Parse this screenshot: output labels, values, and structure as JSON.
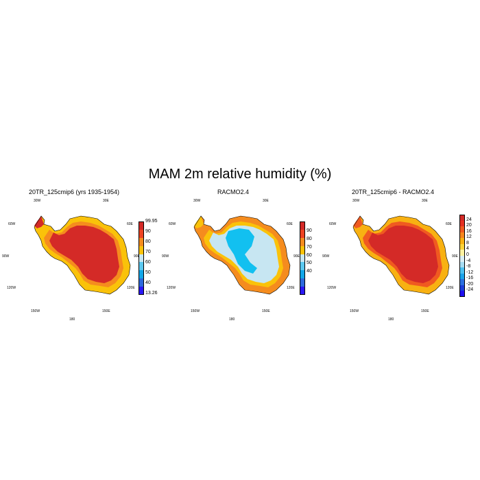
{
  "title": "MAM 2m relative humidity (%)",
  "panels": [
    {
      "title": "20TR_125cmip6 (yrs 1935-1954)",
      "lon_labels": [
        "30W",
        "30E",
        "60W",
        "60E",
        "90W",
        "90E",
        "120W",
        "120E",
        "150W",
        "150E",
        "180"
      ],
      "colorbar": {
        "colors": [
          "#2a19f5",
          "#2c69dc",
          "#12a6e8",
          "#5bc8f0",
          "#c7e6f2",
          "#fac20a",
          "#f58c1e",
          "#ed4322",
          "#d42a27"
        ],
        "labels": [
          "99.95",
          "90",
          "80",
          "70",
          "60",
          "50",
          "40",
          "13.26"
        ]
      }
    },
    {
      "title": "RACMO2.4",
      "lon_labels": [
        "30W",
        "30E",
        "60W",
        "60E",
        "90W",
        "90E",
        "120W",
        "120E",
        "150W",
        "150E",
        "180"
      ],
      "colorbar": {
        "colors": [
          "#2a19f5",
          "#2c69dc",
          "#12a6e8",
          "#5bc8f0",
          "#c7e6f2",
          "#fac20a",
          "#f58c1e",
          "#ed4322",
          "#d42a27"
        ],
        "labels": [
          "90",
          "80",
          "70",
          "60",
          "50",
          "40"
        ]
      }
    },
    {
      "title": "20TR_125cmip6 - RACMO2.4",
      "lon_labels": [
        "30W",
        "30E",
        "60W",
        "60E",
        "90W",
        "90E",
        "120W",
        "120E",
        "150W",
        "150E",
        "180"
      ],
      "colorbar": {
        "colors": [
          "#1f10f0",
          "#1b3fd9",
          "#2a6fe0",
          "#1ba3ea",
          "#4cc0f0",
          "#a6dcf2",
          "#d9eef5",
          "#fff2a0",
          "#fbd33a",
          "#f8b112",
          "#f5861d",
          "#f05a20",
          "#e43022",
          "#d42a27"
        ],
        "labels": [
          "24",
          "20",
          "16",
          "12",
          "8",
          "4",
          "0",
          "-4",
          "-8",
          "-12",
          "-16",
          "-20",
          "-24"
        ]
      }
    }
  ],
  "map_colors": {
    "p1_ocean_edge": "#fac20a",
    "p1_coast": "#f58c1e",
    "p1_interior": "#d42a27",
    "p2_edge": "#f58c1e",
    "p2_coast": "#fac20a",
    "p2_plateau": "#c7e6f2",
    "p2_dry": "#12c0f0",
    "p3_edge": "#f8b112",
    "p3_coast": "#f05a20",
    "p3_interior": "#d42a27"
  }
}
